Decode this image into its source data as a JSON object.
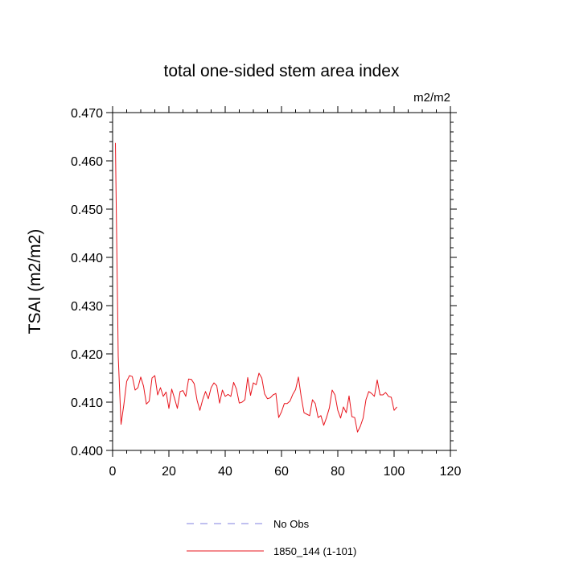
{
  "chart_data": {
    "type": "line",
    "title": "total one-sided stem area index",
    "units_label": "m2/m2",
    "xlabel": "",
    "ylabel": "TSAI  (m2/m2)",
    "xlim": [
      0,
      120
    ],
    "ylim": [
      0.4,
      0.47
    ],
    "x_ticks": [
      0,
      20,
      40,
      60,
      80,
      100,
      120
    ],
    "x_tick_labels": [
      "0",
      "20",
      "40",
      "60",
      "80",
      "100",
      "120"
    ],
    "y_ticks": [
      0.4,
      0.41,
      0.42,
      0.43,
      0.44,
      0.45,
      0.46,
      0.47
    ],
    "y_tick_labels": [
      "0.400",
      "0.410",
      "0.420",
      "0.430",
      "0.440",
      "0.450",
      "0.460",
      "0.470"
    ],
    "series": [
      {
        "name": "1850_144 (1-101)",
        "color": "#e8141c",
        "dash": false,
        "x_start": 1,
        "x_step": 1,
        "values": [
          0.4637,
          0.4195,
          0.4054,
          0.4095,
          0.4143,
          0.4155,
          0.4153,
          0.4125,
          0.413,
          0.4152,
          0.4133,
          0.4096,
          0.4102,
          0.415,
          0.4155,
          0.4115,
          0.413,
          0.4112,
          0.4121,
          0.4087,
          0.4127,
          0.4108,
          0.4087,
          0.4122,
          0.4124,
          0.4112,
          0.4148,
          0.4147,
          0.4138,
          0.4104,
          0.4083,
          0.4105,
          0.4122,
          0.4107,
          0.413,
          0.414,
          0.4134,
          0.4098,
          0.4125,
          0.4112,
          0.4116,
          0.4112,
          0.4141,
          0.4127,
          0.4098,
          0.41,
          0.4105,
          0.4151,
          0.4114,
          0.414,
          0.4136,
          0.416,
          0.415,
          0.4117,
          0.4107,
          0.4109,
          0.4115,
          0.4118,
          0.4068,
          0.408,
          0.4097,
          0.4097,
          0.4102,
          0.4116,
          0.4126,
          0.4152,
          0.4111,
          0.4078,
          0.4075,
          0.4072,
          0.4105,
          0.4097,
          0.4068,
          0.4072,
          0.4052,
          0.4068,
          0.4088,
          0.4125,
          0.4115,
          0.4083,
          0.4067,
          0.409,
          0.4078,
          0.4113,
          0.407,
          0.4068,
          0.4038,
          0.405,
          0.4067,
          0.4105,
          0.4122,
          0.4118,
          0.4112,
          0.4146,
          0.4115,
          0.4115,
          0.412,
          0.4112,
          0.411,
          0.4083,
          0.409
        ]
      }
    ],
    "legend": {
      "placement": "bottom-center",
      "entries": [
        {
          "label": "No Obs",
          "color": "#8080e0",
          "dash": true
        },
        {
          "label": "1850_144 (1-101)",
          "color": "#e8141c",
          "dash": false
        }
      ]
    }
  }
}
